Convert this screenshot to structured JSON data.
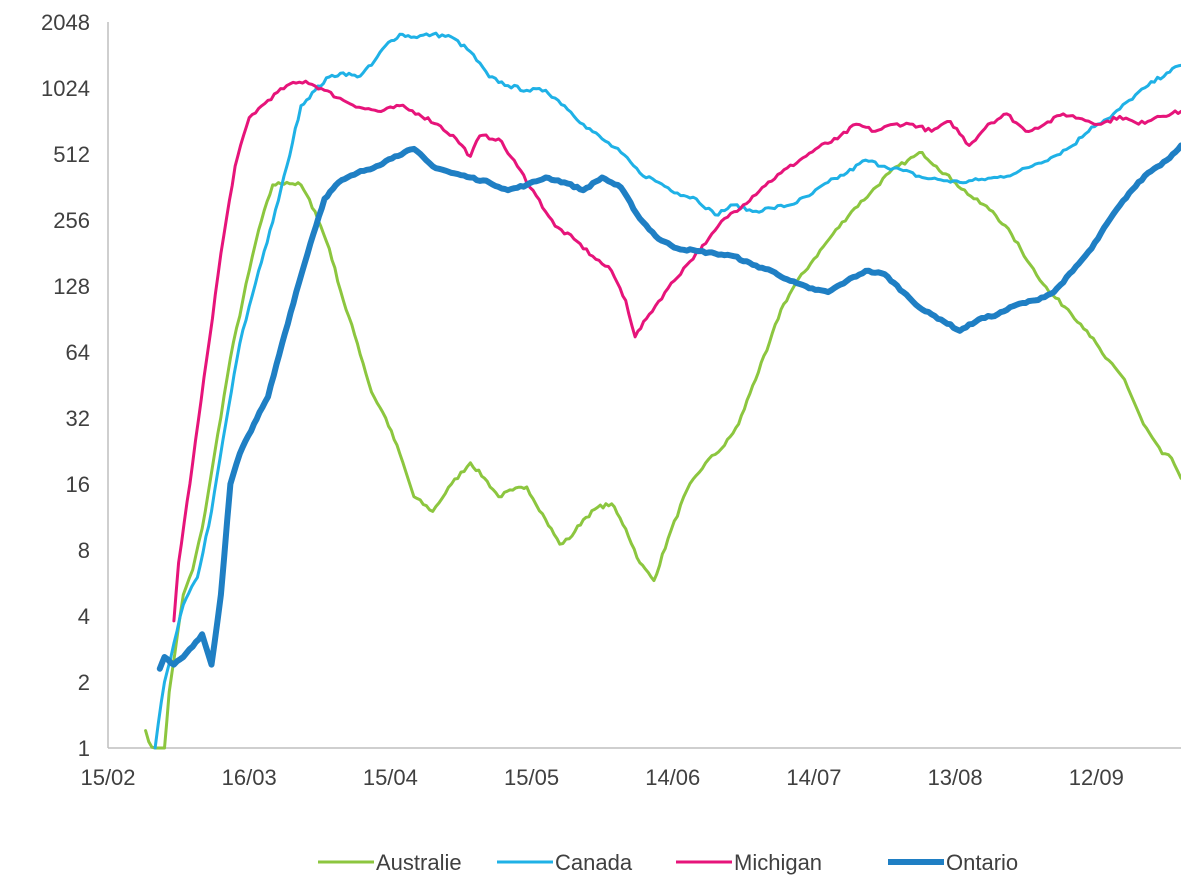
{
  "chart_data": {
    "type": "line",
    "title": "",
    "xlabel": "",
    "ylabel": "",
    "y_scale": "log2",
    "ylim": [
      1,
      2048
    ],
    "y_ticks": [
      1,
      2,
      4,
      8,
      16,
      32,
      64,
      128,
      256,
      512,
      1024,
      2048
    ],
    "y_tick_labels": [
      "1",
      "2",
      "4",
      "8",
      "16",
      "32",
      "64",
      "128",
      "256",
      "512",
      "1024",
      "2048"
    ],
    "xlim": [
      "2020-02-15",
      "2020-09-30"
    ],
    "x_ticks": [
      "2020-02-15",
      "2020-03-16",
      "2020-04-15",
      "2020-05-15",
      "2020-06-14",
      "2020-07-14",
      "2020-08-13",
      "2020-09-12"
    ],
    "x_tick_labels": [
      "15/02",
      "16/03",
      "15/04",
      "15/05",
      "14/06",
      "14/07",
      "13/08",
      "12/09"
    ],
    "grid": false,
    "legend_position": "bottom",
    "series": [
      {
        "name": "Australie",
        "color": "#8CC63F",
        "width": 3,
        "points": [
          [
            "2020-02-23",
            1.2
          ],
          [
            "2020-02-25",
            0.9
          ],
          [
            "2020-02-27",
            0.95
          ],
          [
            "2020-02-28",
            1.8
          ],
          [
            "2020-03-02",
            5
          ],
          [
            "2020-03-04",
            6.5
          ],
          [
            "2020-03-06",
            10
          ],
          [
            "2020-03-08",
            18
          ],
          [
            "2020-03-12",
            60
          ],
          [
            "2020-03-16",
            150
          ],
          [
            "2020-03-18",
            230
          ],
          [
            "2020-03-21",
            370
          ],
          [
            "2020-03-24",
            380
          ],
          [
            "2020-03-27",
            370
          ],
          [
            "2020-03-30",
            280
          ],
          [
            "2020-04-02",
            190
          ],
          [
            "2020-04-05",
            110
          ],
          [
            "2020-04-08",
            70
          ],
          [
            "2020-04-11",
            42
          ],
          [
            "2020-04-14",
            32
          ],
          [
            "2020-04-17",
            22
          ],
          [
            "2020-04-20",
            14
          ],
          [
            "2020-04-24",
            12
          ],
          [
            "2020-04-28",
            16
          ],
          [
            "2020-05-02",
            20
          ],
          [
            "2020-05-05",
            17
          ],
          [
            "2020-05-08",
            14
          ],
          [
            "2020-05-11",
            15
          ],
          [
            "2020-05-14",
            15.5
          ],
          [
            "2020-05-18",
            11
          ],
          [
            "2020-05-21",
            8.5
          ],
          [
            "2020-05-23",
            9
          ],
          [
            "2020-05-26",
            11
          ],
          [
            "2020-05-29",
            12.5
          ],
          [
            "2020-06-01",
            13
          ],
          [
            "2020-06-04",
            10
          ],
          [
            "2020-06-07",
            7
          ],
          [
            "2020-06-10",
            5.8
          ],
          [
            "2020-06-13",
            9
          ],
          [
            "2020-06-17",
            15
          ],
          [
            "2020-06-21",
            20
          ],
          [
            "2020-06-25",
            24
          ],
          [
            "2020-06-28",
            30
          ],
          [
            "2020-07-01",
            45
          ],
          [
            "2020-07-04",
            65
          ],
          [
            "2020-07-07",
            100
          ],
          [
            "2020-07-10",
            130
          ],
          [
            "2020-07-14",
            170
          ],
          [
            "2020-07-18",
            220
          ],
          [
            "2020-07-22",
            280
          ],
          [
            "2020-07-26",
            340
          ],
          [
            "2020-07-30",
            420
          ],
          [
            "2020-08-03",
            480
          ],
          [
            "2020-08-06",
            520
          ],
          [
            "2020-08-09",
            450
          ],
          [
            "2020-08-13",
            380
          ],
          [
            "2020-08-17",
            320
          ],
          [
            "2020-08-21",
            280
          ],
          [
            "2020-08-25",
            220
          ],
          [
            "2020-08-29",
            160
          ],
          [
            "2020-09-02",
            120
          ],
          [
            "2020-09-06",
            100
          ],
          [
            "2020-09-10",
            80
          ],
          [
            "2020-09-14",
            60
          ],
          [
            "2020-09-18",
            48
          ],
          [
            "2020-09-22",
            30
          ],
          [
            "2020-09-26",
            22
          ],
          [
            "2020-09-28",
            21
          ],
          [
            "2020-09-30",
            17
          ]
        ]
      },
      {
        "name": "Canada",
        "color": "#1FB1E6",
        "width": 3,
        "points": [
          [
            "2020-02-25",
            1
          ],
          [
            "2020-02-27",
            2
          ],
          [
            "2020-02-29",
            3
          ],
          [
            "2020-03-02",
            4.5
          ],
          [
            "2020-03-05",
            6
          ],
          [
            "2020-03-08",
            12
          ],
          [
            "2020-03-11",
            30
          ],
          [
            "2020-03-14",
            70
          ],
          [
            "2020-03-18",
            150
          ],
          [
            "2020-03-21",
            250
          ],
          [
            "2020-03-24",
            450
          ],
          [
            "2020-03-27",
            850
          ],
          [
            "2020-03-30",
            1000
          ],
          [
            "2020-04-02",
            1150
          ],
          [
            "2020-04-05",
            1200
          ],
          [
            "2020-04-08",
            1150
          ],
          [
            "2020-04-11",
            1300
          ],
          [
            "2020-04-14",
            1600
          ],
          [
            "2020-04-17",
            1800
          ],
          [
            "2020-04-20",
            1750
          ],
          [
            "2020-04-24",
            1800
          ],
          [
            "2020-04-28",
            1750
          ],
          [
            "2020-05-02",
            1500
          ],
          [
            "2020-05-06",
            1150
          ],
          [
            "2020-05-10",
            1050
          ],
          [
            "2020-05-14",
            1000
          ],
          [
            "2020-05-18",
            1000
          ],
          [
            "2020-05-22",
            850
          ],
          [
            "2020-05-26",
            700
          ],
          [
            "2020-05-30",
            600
          ],
          [
            "2020-06-03",
            520
          ],
          [
            "2020-06-07",
            420
          ],
          [
            "2020-06-11",
            380
          ],
          [
            "2020-06-15",
            340
          ],
          [
            "2020-06-19",
            320
          ],
          [
            "2020-06-23",
            270
          ],
          [
            "2020-06-27",
            300
          ],
          [
            "2020-07-01",
            280
          ],
          [
            "2020-07-05",
            290
          ],
          [
            "2020-07-09",
            300
          ],
          [
            "2020-07-13",
            330
          ],
          [
            "2020-07-17",
            380
          ],
          [
            "2020-07-21",
            420
          ],
          [
            "2020-07-25",
            480
          ],
          [
            "2020-07-29",
            450
          ],
          [
            "2020-08-02",
            430
          ],
          [
            "2020-08-06",
            400
          ],
          [
            "2020-08-10",
            390
          ],
          [
            "2020-08-14",
            380
          ],
          [
            "2020-08-18",
            390
          ],
          [
            "2020-08-22",
            400
          ],
          [
            "2020-08-26",
            420
          ],
          [
            "2020-08-30",
            460
          ],
          [
            "2020-09-03",
            500
          ],
          [
            "2020-09-07",
            560
          ],
          [
            "2020-09-11",
            680
          ],
          [
            "2020-09-15",
            750
          ],
          [
            "2020-09-19",
            900
          ],
          [
            "2020-09-23",
            1050
          ],
          [
            "2020-09-27",
            1200
          ],
          [
            "2020-09-30",
            1300
          ]
        ]
      },
      {
        "name": "Michigan",
        "color": "#E6147A",
        "width": 3,
        "points": [
          [
            "2020-02-29",
            3.8
          ],
          [
            "2020-03-01",
            7
          ],
          [
            "2020-03-04",
            20
          ],
          [
            "2020-03-07",
            60
          ],
          [
            "2020-03-10",
            180
          ],
          [
            "2020-03-13",
            450
          ],
          [
            "2020-03-16",
            750
          ],
          [
            "2020-03-20",
            900
          ],
          [
            "2020-03-24",
            1050
          ],
          [
            "2020-03-28",
            1100
          ],
          [
            "2020-04-01",
            1000
          ],
          [
            "2020-04-05",
            900
          ],
          [
            "2020-04-09",
            830
          ],
          [
            "2020-04-13",
            800
          ],
          [
            "2020-04-17",
            850
          ],
          [
            "2020-04-21",
            780
          ],
          [
            "2020-04-25",
            700
          ],
          [
            "2020-04-29",
            600
          ],
          [
            "2020-05-02",
            500
          ],
          [
            "2020-05-04",
            620
          ],
          [
            "2020-05-08",
            600
          ],
          [
            "2020-05-12",
            450
          ],
          [
            "2020-05-16",
            330
          ],
          [
            "2020-05-20",
            240
          ],
          [
            "2020-05-24",
            210
          ],
          [
            "2020-05-28",
            175
          ],
          [
            "2020-06-01",
            150
          ],
          [
            "2020-06-04",
            110
          ],
          [
            "2020-06-06",
            75
          ],
          [
            "2020-06-09",
            95
          ],
          [
            "2020-06-13",
            125
          ],
          [
            "2020-06-17",
            160
          ],
          [
            "2020-06-21",
            200
          ],
          [
            "2020-06-25",
            260
          ],
          [
            "2020-06-29",
            300
          ],
          [
            "2020-07-03",
            360
          ],
          [
            "2020-07-07",
            420
          ],
          [
            "2020-07-11",
            480
          ],
          [
            "2020-07-15",
            550
          ],
          [
            "2020-07-19",
            600
          ],
          [
            "2020-07-23",
            700
          ],
          [
            "2020-07-27",
            650
          ],
          [
            "2020-07-31",
            700
          ],
          [
            "2020-08-04",
            700
          ],
          [
            "2020-08-08",
            650
          ],
          [
            "2020-08-12",
            720
          ],
          [
            "2020-08-16",
            560
          ],
          [
            "2020-08-20",
            700
          ],
          [
            "2020-08-24",
            780
          ],
          [
            "2020-08-28",
            650
          ],
          [
            "2020-09-01",
            700
          ],
          [
            "2020-09-05",
            780
          ],
          [
            "2020-09-09",
            740
          ],
          [
            "2020-09-13",
            700
          ],
          [
            "2020-09-17",
            760
          ],
          [
            "2020-09-21",
            700
          ],
          [
            "2020-09-25",
            760
          ],
          [
            "2020-09-30",
            800
          ]
        ]
      },
      {
        "name": "Ontario",
        "color": "#1F7FC4",
        "width": 6,
        "points": [
          [
            "2020-02-26",
            2.3
          ],
          [
            "2020-02-27",
            2.6
          ],
          [
            "2020-02-29",
            2.4
          ],
          [
            "2020-03-02",
            2.6
          ],
          [
            "2020-03-04",
            2.9
          ],
          [
            "2020-03-06",
            3.3
          ],
          [
            "2020-03-08",
            2.4
          ],
          [
            "2020-03-10",
            5
          ],
          [
            "2020-03-12",
            16
          ],
          [
            "2020-03-14",
            22
          ],
          [
            "2020-03-17",
            30
          ],
          [
            "2020-03-20",
            40
          ],
          [
            "2020-03-23",
            70
          ],
          [
            "2020-03-26",
            120
          ],
          [
            "2020-03-29",
            200
          ],
          [
            "2020-04-01",
            320
          ],
          [
            "2020-04-04",
            380
          ],
          [
            "2020-04-08",
            420
          ],
          [
            "2020-04-12",
            450
          ],
          [
            "2020-04-16",
            500
          ],
          [
            "2020-04-20",
            540
          ],
          [
            "2020-04-24",
            450
          ],
          [
            "2020-04-28",
            420
          ],
          [
            "2020-05-02",
            400
          ],
          [
            "2020-05-06",
            380
          ],
          [
            "2020-05-10",
            350
          ],
          [
            "2020-05-14",
            370
          ],
          [
            "2020-05-18",
            400
          ],
          [
            "2020-05-22",
            380
          ],
          [
            "2020-05-26",
            350
          ],
          [
            "2020-05-30",
            400
          ],
          [
            "2020-06-03",
            360
          ],
          [
            "2020-06-07",
            260
          ],
          [
            "2020-06-11",
            210
          ],
          [
            "2020-06-15",
            190
          ],
          [
            "2020-06-19",
            185
          ],
          [
            "2020-06-23",
            180
          ],
          [
            "2020-06-27",
            175
          ],
          [
            "2020-07-01",
            160
          ],
          [
            "2020-07-05",
            150
          ],
          [
            "2020-07-09",
            135
          ],
          [
            "2020-07-13",
            125
          ],
          [
            "2020-07-17",
            120
          ],
          [
            "2020-07-21",
            135
          ],
          [
            "2020-07-25",
            150
          ],
          [
            "2020-07-29",
            145
          ],
          [
            "2020-08-02",
            120
          ],
          [
            "2020-08-06",
            100
          ],
          [
            "2020-08-10",
            90
          ],
          [
            "2020-08-14",
            80
          ],
          [
            "2020-08-18",
            90
          ],
          [
            "2020-08-22",
            95
          ],
          [
            "2020-08-26",
            105
          ],
          [
            "2020-08-30",
            110
          ],
          [
            "2020-09-03",
            120
          ],
          [
            "2020-09-07",
            150
          ],
          [
            "2020-09-11",
            190
          ],
          [
            "2020-09-15",
            260
          ],
          [
            "2020-09-19",
            340
          ],
          [
            "2020-09-23",
            420
          ],
          [
            "2020-09-27",
            480
          ],
          [
            "2020-09-30",
            560
          ]
        ]
      }
    ]
  }
}
